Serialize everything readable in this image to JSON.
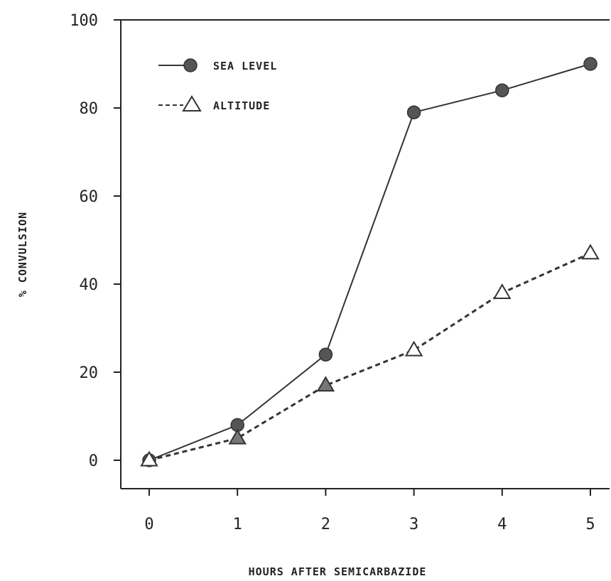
{
  "chart_data": {
    "type": "line",
    "xlabel": "HOURS AFTER SEMICARBAZIDE",
    "ylabel": "% CONVULSION",
    "x": [
      0,
      1,
      2,
      3,
      4,
      5
    ],
    "xticks": [
      "0",
      "1",
      "2",
      "3",
      "4",
      "5"
    ],
    "yticks": [
      "0",
      "20",
      "40",
      "60",
      "80",
      "100"
    ],
    "xlim": [
      -0.3,
      5.2
    ],
    "ylim": [
      -6,
      100
    ],
    "grid": false,
    "legend_position": "top-left",
    "series": [
      {
        "name": "SEA LEVEL",
        "marker": "filled-circle",
        "line": "solid",
        "values": [
          0,
          8,
          24,
          79,
          84,
          90
        ]
      },
      {
        "name": "ALTITUDE",
        "marker": "open-triangle",
        "line": "dashed",
        "values": [
          0,
          5,
          17,
          25,
          38,
          47
        ]
      }
    ]
  }
}
